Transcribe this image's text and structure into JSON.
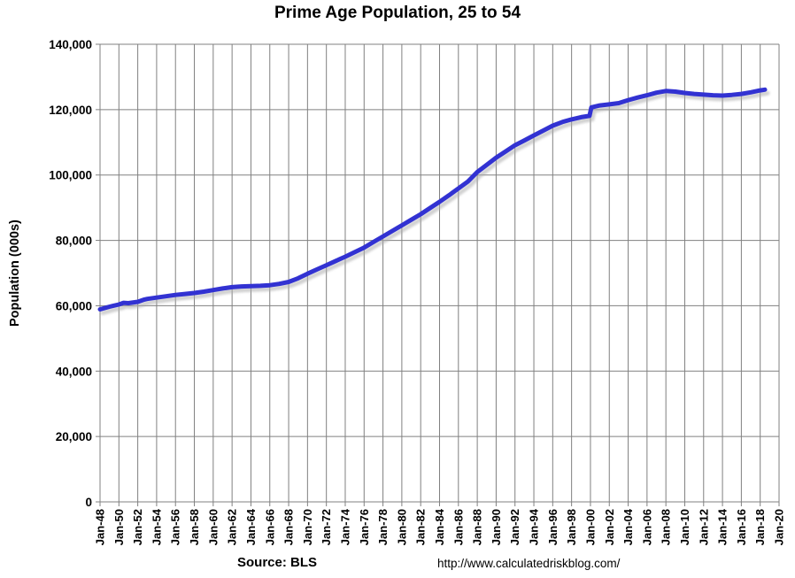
{
  "chart_data": {
    "type": "line",
    "title": "Prime Age Population, 25 to 54",
    "ylabel": "Population (000s)",
    "xlabel": "",
    "source": "Source: BLS",
    "url": "http://www.calculatedriskblog.com/",
    "legend": "none",
    "grid": "both",
    "colors": {
      "line": "#3232d2",
      "line_shadow": "#aaaaaa",
      "gridline": "#808080",
      "axis": "#808080",
      "text": "#000000",
      "background": "#ffffff"
    },
    "x_axis": {
      "min": 1948,
      "max": 2020,
      "tick_interval_years": 2
    },
    "y_axis": {
      "min": 0,
      "max": 140000,
      "tick_interval": 20000
    },
    "x_ticks": [
      {
        "year": 1948,
        "label": "Jan-48"
      },
      {
        "year": 1950,
        "label": "Jan-50"
      },
      {
        "year": 1952,
        "label": "Jan-52"
      },
      {
        "year": 1954,
        "label": "Jan-54"
      },
      {
        "year": 1956,
        "label": "Jan-56"
      },
      {
        "year": 1958,
        "label": "Jan-58"
      },
      {
        "year": 1960,
        "label": "Jan-60"
      },
      {
        "year": 1962,
        "label": "Jan-62"
      },
      {
        "year": 1964,
        "label": "Jan-64"
      },
      {
        "year": 1966,
        "label": "Jan-66"
      },
      {
        "year": 1968,
        "label": "Jan-68"
      },
      {
        "year": 1970,
        "label": "Jan-70"
      },
      {
        "year": 1972,
        "label": "Jan-72"
      },
      {
        "year": 1974,
        "label": "Jan-74"
      },
      {
        "year": 1976,
        "label": "Jan-76"
      },
      {
        "year": 1978,
        "label": "Jan-78"
      },
      {
        "year": 1980,
        "label": "Jan-80"
      },
      {
        "year": 1982,
        "label": "Jan-82"
      },
      {
        "year": 1984,
        "label": "Jan-84"
      },
      {
        "year": 1986,
        "label": "Jan-86"
      },
      {
        "year": 1988,
        "label": "Jan-88"
      },
      {
        "year": 1990,
        "label": "Jan-90"
      },
      {
        "year": 1992,
        "label": "Jan-92"
      },
      {
        "year": 1994,
        "label": "Jan-94"
      },
      {
        "year": 1996,
        "label": "Jan-96"
      },
      {
        "year": 1998,
        "label": "Jan-98"
      },
      {
        "year": 2000,
        "label": "Jan-00"
      },
      {
        "year": 2002,
        "label": "Jan-02"
      },
      {
        "year": 2004,
        "label": "Jan-04"
      },
      {
        "year": 2006,
        "label": "Jan-06"
      },
      {
        "year": 2008,
        "label": "Jan-08"
      },
      {
        "year": 2010,
        "label": "Jan-10"
      },
      {
        "year": 2012,
        "label": "Jan-12"
      },
      {
        "year": 2014,
        "label": "Jan-14"
      },
      {
        "year": 2016,
        "label": "Jan-16"
      },
      {
        "year": 2018,
        "label": "Jan-18"
      },
      {
        "year": 2020,
        "label": "Jan-20"
      }
    ],
    "y_ticks": [
      {
        "value": 0,
        "label": "0"
      },
      {
        "value": 20000,
        "label": "20,000"
      },
      {
        "value": 40000,
        "label": "40,000"
      },
      {
        "value": 60000,
        "label": "60,000"
      },
      {
        "value": 80000,
        "label": "80,000"
      },
      {
        "value": 100000,
        "label": "100,000"
      },
      {
        "value": 120000,
        "label": "120,000"
      },
      {
        "value": 140000,
        "label": "140,000"
      }
    ],
    "series": [
      {
        "name": "Prime Age Population (25 to 54), thousands",
        "points": [
          [
            1948,
            58900
          ],
          [
            1949,
            59700
          ],
          [
            1950,
            60400
          ],
          [
            1950.5,
            60900
          ],
          [
            1951,
            60800
          ],
          [
            1952,
            61200
          ],
          [
            1952.7,
            61900
          ],
          [
            1953,
            62100
          ],
          [
            1954,
            62500
          ],
          [
            1955,
            62900
          ],
          [
            1956,
            63300
          ],
          [
            1957,
            63600
          ],
          [
            1958,
            63900
          ],
          [
            1959,
            64300
          ],
          [
            1960,
            64800
          ],
          [
            1961,
            65300
          ],
          [
            1962,
            65700
          ],
          [
            1963,
            65900
          ],
          [
            1964,
            66000
          ],
          [
            1965,
            66100
          ],
          [
            1966,
            66300
          ],
          [
            1967,
            66700
          ],
          [
            1968,
            67300
          ],
          [
            1969,
            68400
          ],
          [
            1970,
            69800
          ],
          [
            1971,
            71100
          ],
          [
            1972,
            72400
          ],
          [
            1973,
            73700
          ],
          [
            1974,
            75000
          ],
          [
            1975,
            76400
          ],
          [
            1976,
            77800
          ],
          [
            1977,
            79500
          ],
          [
            1978,
            81200
          ],
          [
            1979,
            82900
          ],
          [
            1980,
            84600
          ],
          [
            1981,
            86300
          ],
          [
            1982,
            88000
          ],
          [
            1983,
            89900
          ],
          [
            1984,
            91800
          ],
          [
            1985,
            93800
          ],
          [
            1986,
            95900
          ],
          [
            1987,
            98000
          ],
          [
            1988,
            100900
          ],
          [
            1989,
            103100
          ],
          [
            1990,
            105300
          ],
          [
            1991,
            107200
          ],
          [
            1992,
            109100
          ],
          [
            1993,
            110600
          ],
          [
            1994,
            112100
          ],
          [
            1995,
            113600
          ],
          [
            1996,
            115100
          ],
          [
            1997,
            116200
          ],
          [
            1998,
            117000
          ],
          [
            1999,
            117700
          ],
          [
            1999.9,
            118100
          ],
          [
            2000.1,
            120700
          ],
          [
            2001,
            121300
          ],
          [
            2002,
            121600
          ],
          [
            2003,
            122000
          ],
          [
            2004,
            122900
          ],
          [
            2005,
            123700
          ],
          [
            2006,
            124400
          ],
          [
            2007,
            125200
          ],
          [
            2008,
            125700
          ],
          [
            2009,
            125500
          ],
          [
            2010,
            125100
          ],
          [
            2011,
            124800
          ],
          [
            2012,
            124600
          ],
          [
            2013,
            124400
          ],
          [
            2014,
            124300
          ],
          [
            2015,
            124500
          ],
          [
            2016,
            124800
          ],
          [
            2017,
            125300
          ],
          [
            2018,
            125900
          ],
          [
            2018.5,
            126100
          ]
        ]
      }
    ]
  }
}
